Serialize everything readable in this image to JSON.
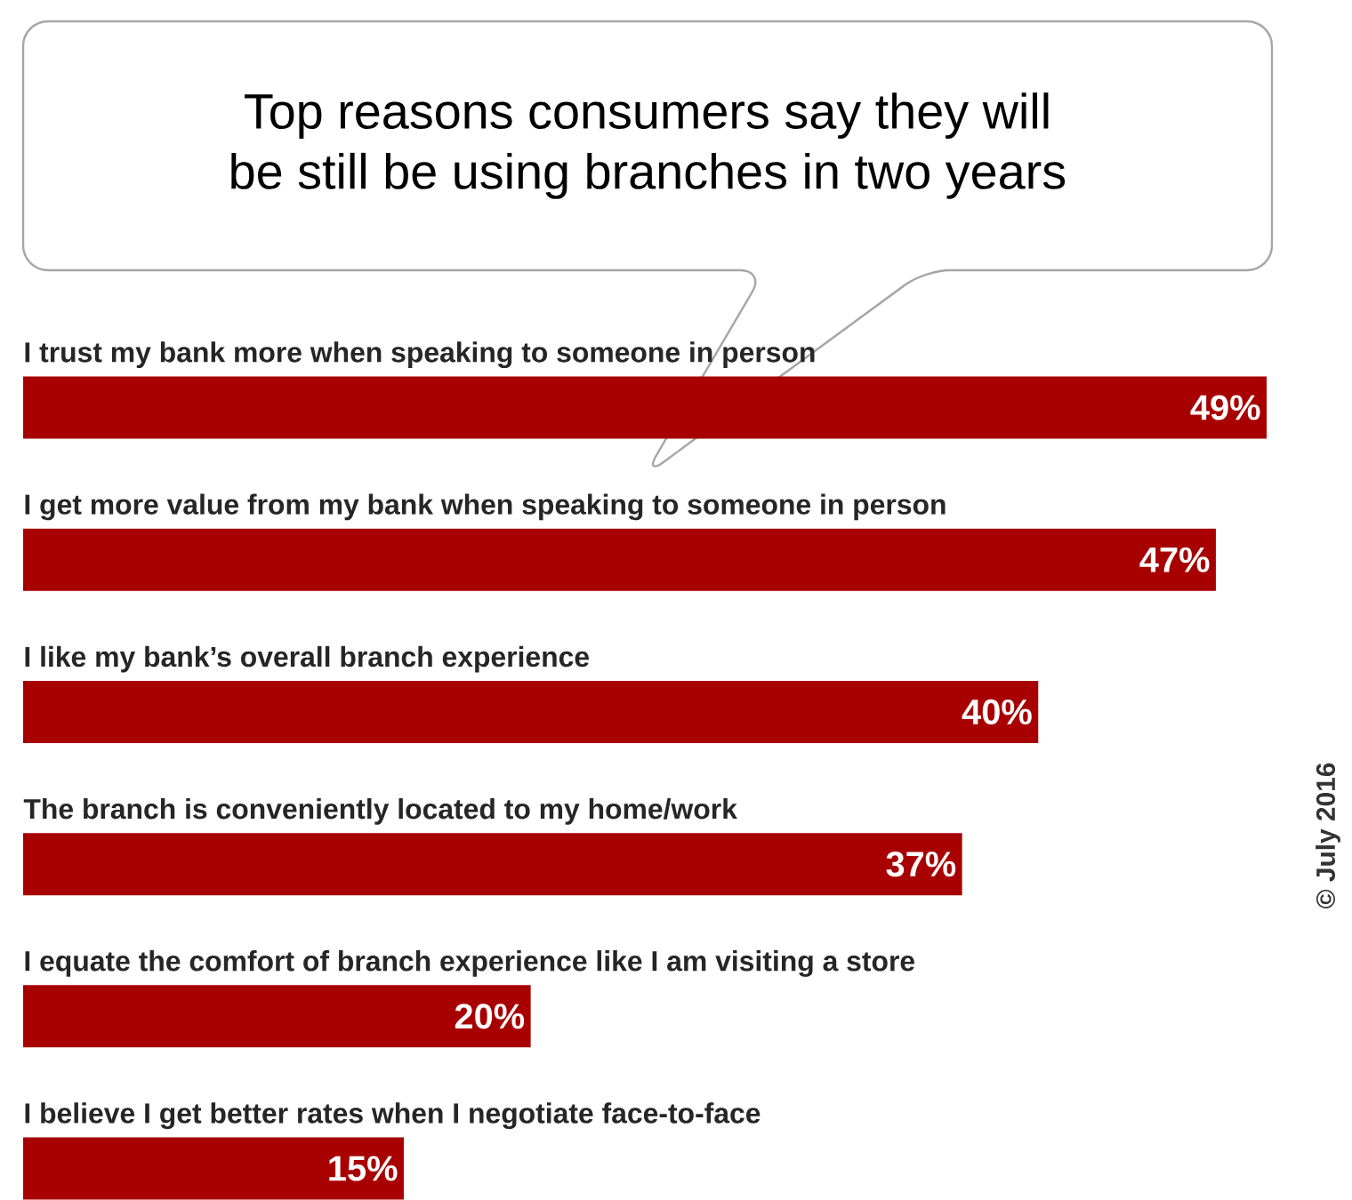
{
  "chart_data": {
    "type": "bar",
    "orientation": "horizontal",
    "title": "Top reasons consumers say they will\nbe still be using branches in two years",
    "categories": [
      "I trust my bank more when speaking to someone in person",
      "I get more value from my bank when speaking to someone in person",
      "I like my bank’s overall branch experience",
      "The branch is conveniently located to my home/work",
      "I equate the comfort of branch experience like I am visiting a store",
      "I believe I get better rates when I negotiate face-to-face"
    ],
    "values": [
      49,
      47,
      40,
      37,
      20,
      15
    ],
    "value_labels": [
      "49%",
      "47%",
      "40%",
      "37%",
      "20%",
      "15%"
    ],
    "color": "#a80000",
    "annotations": [
      "© July 2016"
    ]
  }
}
